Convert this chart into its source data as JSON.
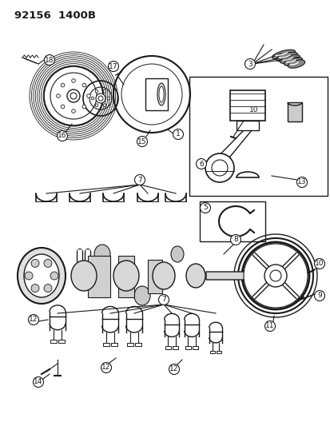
{
  "title": "92156  1400B",
  "bg_color": "#ffffff",
  "line_color": "#1a1a1a",
  "fig_width": 4.14,
  "fig_height": 5.33,
  "dpi": 100
}
